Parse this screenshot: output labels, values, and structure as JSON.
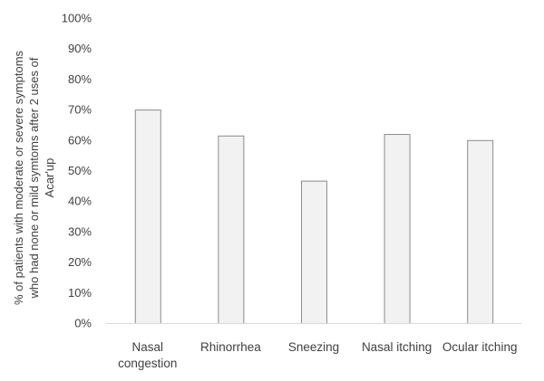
{
  "chart_data": {
    "type": "bar",
    "categories": [
      [
        "Nasal",
        "congestion"
      ],
      [
        "Rhinorrhea"
      ],
      [
        "Sneezing"
      ],
      [
        "Nasal itching"
      ],
      [
        "Ocular itching"
      ]
    ],
    "values": [
      70,
      61.5,
      46.7,
      62,
      60
    ],
    "title": "",
    "xlabel": "",
    "ylabel_lines": [
      "% of patients with moderate  or severe symptoms",
      "who had  none or mild symtoms after 2 uses of",
      "Acar'up"
    ],
    "ylim": [
      0,
      100
    ],
    "yticks": [
      0,
      10,
      20,
      30,
      40,
      50,
      60,
      70,
      80,
      90,
      100
    ],
    "ytick_labels": [
      "0%",
      "10%",
      "20%",
      "30%",
      "40%",
      "50%",
      "60%",
      "70%",
      "80%",
      "90%",
      "100%"
    ],
    "grid": false,
    "legend": "none",
    "colors": {
      "bar_fill": "#f2f2f2",
      "bar_stroke": "#8c8c8c",
      "axis": "#d9d9d9",
      "text": "#404040"
    }
  }
}
